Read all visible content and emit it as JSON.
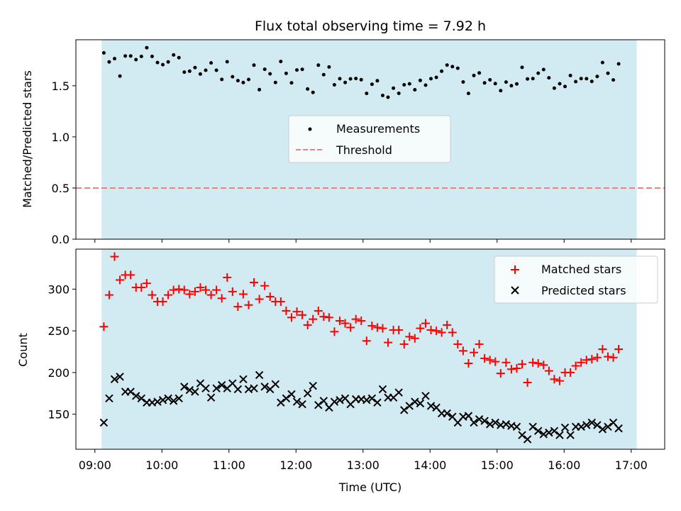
{
  "chart_data": {
    "type": "scatter",
    "title": "Flux total observing time = 7.92 h",
    "shaded_window": [
      "09:06",
      "17:05"
    ],
    "colors": {
      "shade": "#add8e6",
      "matched": "#ff0000",
      "predicted": "#000000",
      "measurement": "#000000",
      "threshold": "#f08080"
    },
    "xlabel": "Time (UTC)",
    "x_ticks": [
      "09:00",
      "10:00",
      "11:00",
      "12:00",
      "13:00",
      "14:00",
      "15:00",
      "16:00",
      "17:00"
    ],
    "top": {
      "ylabel": "Matched/Predicted stars",
      "ylim": [
        0,
        1.95
      ],
      "y_ticks": [
        "0.0",
        "0.5",
        "1.0",
        "1.5"
      ],
      "threshold": 0.5,
      "legend": {
        "measurements": "Measurements",
        "threshold": "Threshold"
      }
    },
    "bottom": {
      "ylabel": "Count",
      "ylim": [
        108,
        348
      ],
      "y_ticks": [
        "150",
        "200",
        "250",
        "300"
      ],
      "legend": {
        "matched": "Matched stars",
        "predicted": "Predicted stars"
      }
    },
    "start_time": "09:08",
    "interval_minutes": 4.8,
    "matched": [
      255,
      293,
      339,
      311,
      317,
      317,
      302,
      302,
      307,
      293,
      285,
      285,
      293,
      299,
      300,
      299,
      294,
      297,
      302,
      299,
      293,
      299,
      289,
      314,
      297,
      279,
      294,
      281,
      308,
      288,
      304,
      291,
      285,
      285,
      274,
      266,
      273,
      269,
      257,
      264,
      274,
      267,
      266,
      249,
      262,
      259,
      254,
      264,
      262,
      238,
      256,
      254,
      253,
      236,
      251,
      251,
      234,
      243,
      241,
      253,
      259,
      251,
      250,
      248,
      257,
      248,
      234,
      226,
      211,
      224,
      234,
      217,
      215,
      213,
      199,
      212,
      204,
      205,
      210,
      188,
      212,
      211,
      209,
      202,
      192,
      190,
      200,
      200,
      208,
      212,
      215,
      216,
      218,
      228,
      219,
      218,
      228
    ],
    "predicted": [
      140,
      169,
      192,
      195,
      177,
      177,
      172,
      169,
      164,
      164,
      165,
      167,
      169,
      166,
      169,
      183,
      179,
      177,
      187,
      181,
      170,
      181,
      185,
      181,
      187,
      180,
      192,
      180,
      181,
      197,
      183,
      180,
      186,
      164,
      169,
      174,
      165,
      162,
      175,
      184,
      161,
      166,
      158,
      165,
      167,
      169,
      162,
      168,
      168,
      167,
      169,
      164,
      180,
      170,
      170,
      176,
      155,
      160,
      165,
      163,
      172,
      160,
      158,
      151,
      151,
      147,
      140,
      147,
      148,
      140,
      144,
      142,
      138,
      140,
      137,
      138,
      136,
      135,
      125,
      120,
      135,
      130,
      126,
      128,
      130,
      125,
      134,
      125,
      135,
      135,
      137,
      140,
      137,
      132,
      135,
      140,
      133
    ]
  }
}
